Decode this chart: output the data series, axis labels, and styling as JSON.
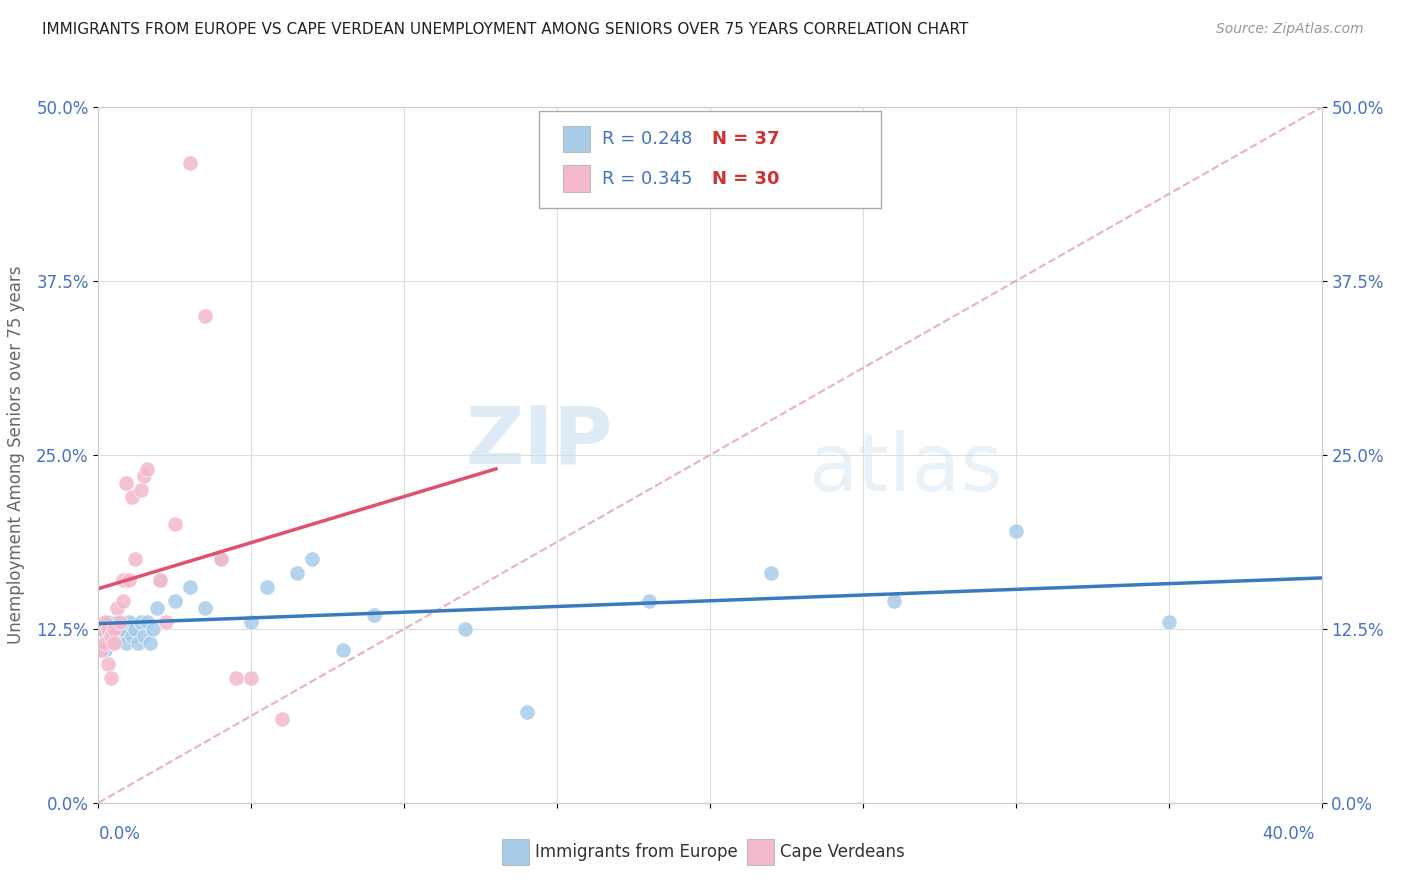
{
  "title": "IMMIGRANTS FROM EUROPE VS CAPE VERDEAN UNEMPLOYMENT AMONG SENIORS OVER 75 YEARS CORRELATION CHART",
  "source": "Source: ZipAtlas.com",
  "ylabel": "Unemployment Among Seniors over 75 years",
  "legend_label_blue": "Immigrants from Europe",
  "legend_label_pink": "Cape Verdeans",
  "R_blue": "0.248",
  "N_blue": "37",
  "R_pink": "0.345",
  "N_pink": "30",
  "blue_color": "#a8cce8",
  "pink_color": "#f4b8cc",
  "blue_line_color": "#3a7abf",
  "pink_line_color": "#e05070",
  "dashed_line_color": "#e090a0",
  "watermark_zip": "ZIP",
  "watermark_atlas": "atlas",
  "background_color": "#ffffff",
  "grid_color": "#dddddd",
  "title_color": "#222222",
  "axis_tick_color": "#4472c4",
  "legend_r_color": "#4472c4",
  "legend_n_color": "#cc3333",
  "blue_scatter_x": [
    0.001,
    0.002,
    0.003,
    0.004,
    0.005,
    0.006,
    0.007,
    0.008,
    0.009,
    0.01,
    0.011,
    0.012,
    0.013,
    0.014,
    0.015,
    0.016,
    0.017,
    0.018,
    0.019,
    0.02,
    0.025,
    0.03,
    0.035,
    0.04,
    0.05,
    0.055,
    0.065,
    0.07,
    0.08,
    0.09,
    0.12,
    0.14,
    0.18,
    0.22,
    0.26,
    0.3,
    0.35
  ],
  "blue_scatter_y": [
    0.125,
    0.11,
    0.13,
    0.12,
    0.115,
    0.13,
    0.12,
    0.125,
    0.115,
    0.13,
    0.12,
    0.125,
    0.115,
    0.13,
    0.12,
    0.13,
    0.115,
    0.125,
    0.14,
    0.16,
    0.145,
    0.155,
    0.14,
    0.175,
    0.13,
    0.155,
    0.165,
    0.175,
    0.11,
    0.135,
    0.125,
    0.065,
    0.145,
    0.165,
    0.145,
    0.195,
    0.13
  ],
  "pink_scatter_x": [
    0.001,
    0.001,
    0.002,
    0.002,
    0.003,
    0.003,
    0.004,
    0.004,
    0.005,
    0.005,
    0.006,
    0.007,
    0.008,
    0.008,
    0.009,
    0.01,
    0.011,
    0.012,
    0.014,
    0.015,
    0.016,
    0.02,
    0.022,
    0.025,
    0.03,
    0.035,
    0.04,
    0.045,
    0.05,
    0.06
  ],
  "pink_scatter_y": [
    0.125,
    0.11,
    0.13,
    0.115,
    0.125,
    0.1,
    0.12,
    0.09,
    0.125,
    0.115,
    0.14,
    0.13,
    0.16,
    0.145,
    0.23,
    0.16,
    0.22,
    0.175,
    0.225,
    0.235,
    0.24,
    0.16,
    0.13,
    0.2,
    0.46,
    0.35,
    0.175,
    0.09,
    0.09,
    0.06
  ],
  "xlim": [
    0.0,
    0.4
  ],
  "ylim": [
    0.0,
    0.5
  ],
  "yticks": [
    0.0,
    0.125,
    0.25,
    0.375,
    0.5
  ],
  "ytick_labels": [
    "0.0%",
    "12.5%",
    "25.0%",
    "37.5%",
    "50.0%"
  ]
}
